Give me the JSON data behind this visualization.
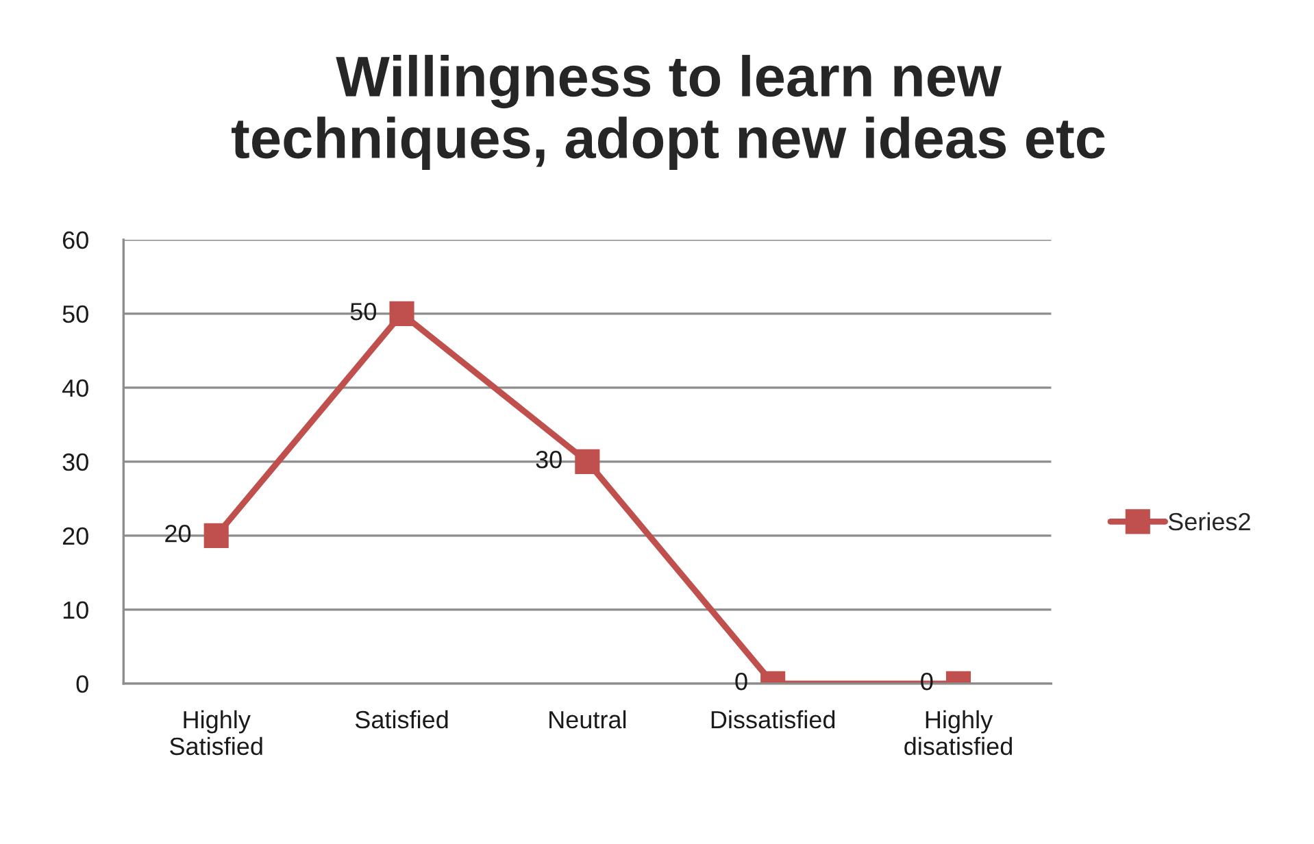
{
  "chart_data": {
    "type": "line",
    "title": "Willingness to learn new techniques, adopt new ideas etc",
    "categories": [
      "Highly Satisfied",
      "Satisfied",
      "Neutral",
      "Dissatisfied",
      "Highly disatisfied"
    ],
    "series": [
      {
        "name": "Series2",
        "color": "#c0504d",
        "values": [
          20,
          50,
          30,
          0,
          0
        ]
      }
    ],
    "ylim": [
      0,
      60
    ],
    "yticks": [
      0,
      10,
      20,
      30,
      40,
      50,
      60
    ],
    "grid": "y",
    "legend": "right",
    "marker": "square",
    "line_style": "solid",
    "data_labels": true
  }
}
